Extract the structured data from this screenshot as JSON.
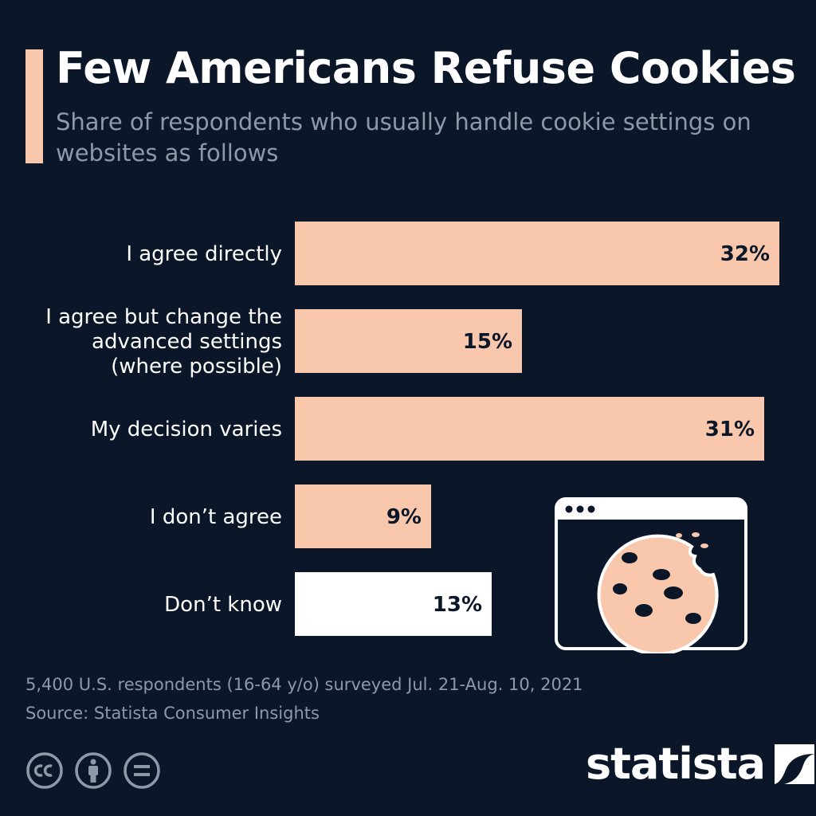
{
  "title": "Few Americans Refuse Cookies",
  "subtitle": "Share of respondents who usually handle cookie settings on websites as follows",
  "chart_data": {
    "type": "bar",
    "orientation": "horizontal",
    "title": "Few Americans Refuse Cookies",
    "subtitle": "Share of respondents who usually handle cookie settings on websites as follows",
    "categories": [
      [
        "I agree directly"
      ],
      [
        "I agree but change the",
        "advanced settings",
        "(where possible)"
      ],
      [
        "My decision varies"
      ],
      [
        "I don’t agree"
      ],
      [
        "Don’t know"
      ]
    ],
    "values": [
      32,
      15,
      31,
      9,
      13
    ],
    "value_labels": [
      "32%",
      "15%",
      "31%",
      "9%",
      "13%"
    ],
    "unit": "%",
    "xlim": [
      0,
      32
    ],
    "grid": false,
    "bar_colors": [
      "#f9c8ac",
      "#f9c8ac",
      "#f9c8ac",
      "#f9c8ac",
      "#ffffff"
    ]
  },
  "footer": {
    "note": "5,400 U.S. respondents (16-64 y/o) surveyed Jul. 21-Aug. 10, 2021",
    "source": "Source: Statista Consumer Insights"
  },
  "brand": {
    "name": "statista",
    "license_icons": [
      "cc-icon",
      "attribution-icon",
      "no-derivatives-icon"
    ]
  },
  "colors": {
    "background": "#0b1729",
    "accent": "#f9c8ac",
    "highlight": "#ffffff",
    "muted_text": "#8e99a8"
  },
  "illustration": {
    "icons": [
      "browser-window-icon",
      "cookie-icon"
    ]
  }
}
